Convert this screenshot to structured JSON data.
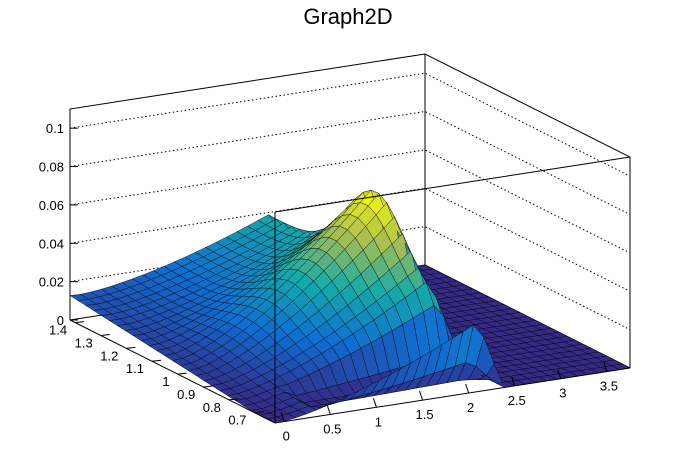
{
  "chart_data": {
    "type": "surface",
    "title": "Graph2D",
    "xlabel": "",
    "ylabel": "",
    "zlabel": "",
    "x_ticks": [
      "0",
      "0.5",
      "1",
      "1.5",
      "2",
      "2.5",
      "3",
      "3.5"
    ],
    "y_ticks": [
      "0.7",
      "0.8",
      "0.9",
      "1",
      "1.1",
      "1.2",
      "1.3",
      "1.4"
    ],
    "z_ticks": [
      "0",
      "0.02",
      "0.04",
      "0.06",
      "0.08",
      "0.1"
    ],
    "xlim": [
      -0.1,
      3.75
    ],
    "ylim": [
      0.62,
      1.42
    ],
    "zlim": [
      0,
      0.11
    ],
    "grid": true,
    "palette": "kBird",
    "peak": {
      "x": 2.1,
      "y": 1.0,
      "z": 0.08
    },
    "colors": {
      "low": "#352a87",
      "mid": "#21a5a0",
      "high": "#f9fb0e",
      "line": "#000000"
    }
  }
}
